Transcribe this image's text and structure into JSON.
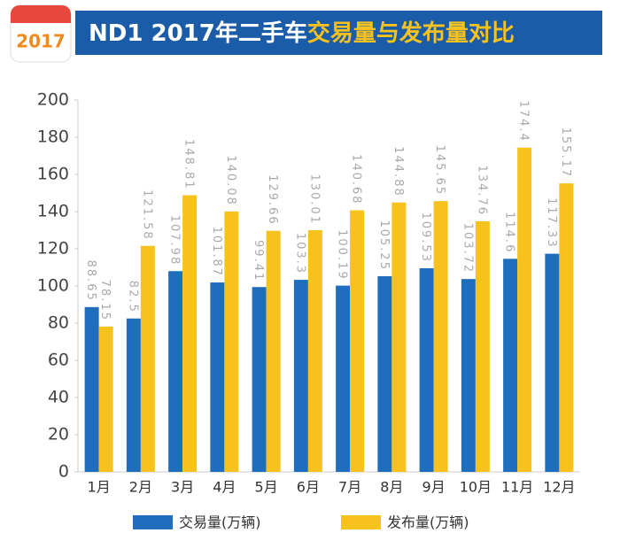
{
  "badge": "2017",
  "chart_data": {
    "type": "bar",
    "title": [
      "ND1 2017年二手车",
      "交易量与发布量对比"
    ],
    "categories": [
      "1月",
      "2月",
      "3月",
      "4月",
      "5月",
      "6月",
      "7月",
      "8月",
      "9月",
      "10月",
      "11月",
      "12月"
    ],
    "series": [
      {
        "name": "交易量(万辆)",
        "color": "#1f6dbd",
        "values": [
          88.65,
          82.5,
          107.98,
          101.87,
          99.41,
          103.3,
          100.19,
          105.25,
          109.53,
          103.72,
          114.6,
          117.33
        ]
      },
      {
        "name": "发布量(万辆)",
        "color": "#f7c21e",
        "values": [
          78.15,
          121.58,
          148.81,
          140.08,
          129.66,
          130.01,
          140.68,
          144.88,
          145.65,
          134.76,
          174.4,
          155.17
        ]
      }
    ],
    "ylim": [
      0,
      200
    ],
    "yticks": [
      0,
      20,
      40,
      60,
      80,
      100,
      120,
      140,
      160,
      180,
      200
    ]
  }
}
